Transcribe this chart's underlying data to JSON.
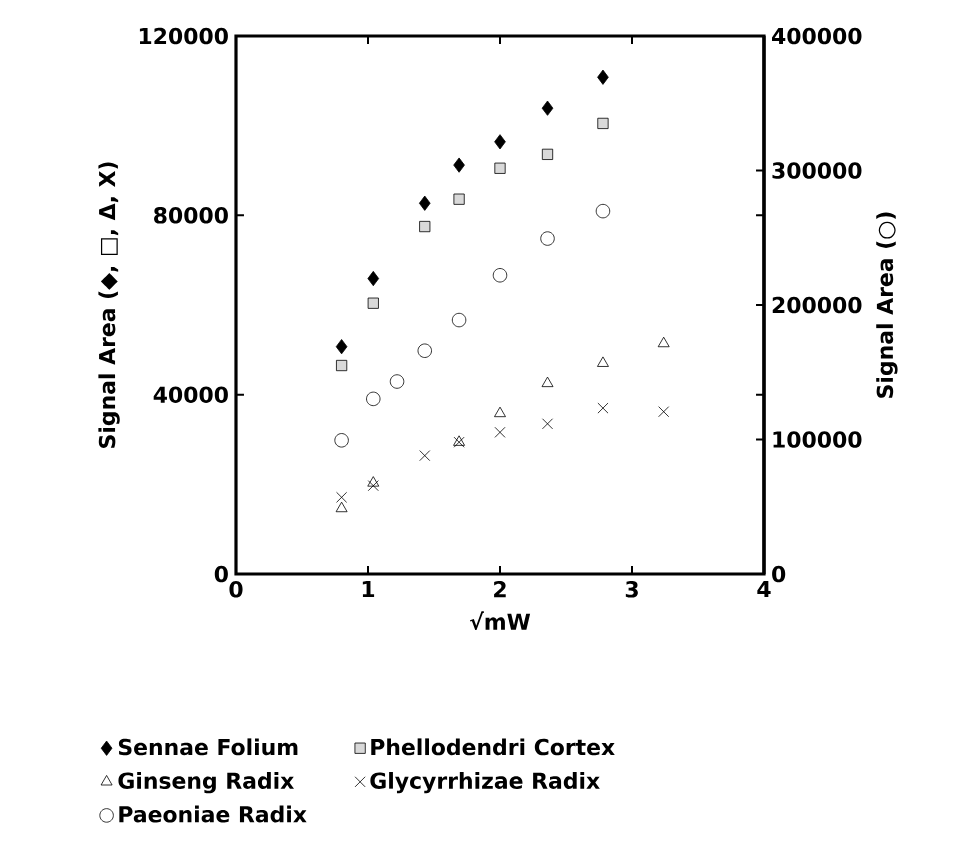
{
  "chart_data": {
    "type": "scatter",
    "xlabel": "√mW",
    "ylabel": "Signal Area (◆, □, Δ, X)",
    "y2label": "Signal Area (○)",
    "xlim": [
      0,
      4
    ],
    "xticks": [
      0,
      1,
      2,
      3,
      4
    ],
    "ylim": [
      0,
      120000
    ],
    "yticks": [
      0,
      40000,
      80000,
      120000
    ],
    "y2lim": [
      0,
      400000
    ],
    "y2ticks": [
      0,
      100000,
      200000,
      300000,
      400000
    ],
    "legend": "bottom",
    "grid": false,
    "series": [
      {
        "name": "Sennae Folium",
        "color": "#000000",
        "marker": "diamond",
        "x": [
          0.8,
          1.04,
          1.43,
          1.69,
          2.0,
          2.36,
          2.78
        ],
        "values": [
          50700,
          65900,
          82700,
          91200,
          96400,
          103900,
          110800
        ]
      },
      {
        "name": "Phellodendri Cortex",
        "color": "#000000",
        "marker": "square",
        "x": [
          0.8,
          1.04,
          1.43,
          1.69,
          2.0,
          2.36,
          2.78
        ],
        "values": [
          46500,
          60400,
          77500,
          83600,
          90500,
          93600,
          100500
        ]
      },
      {
        "name": "Ginseng Radix",
        "color": "#000000",
        "marker": "triangle",
        "x": [
          0.8,
          1.04,
          1.69,
          2.0,
          2.36,
          2.78,
          3.24
        ],
        "values": [
          14600,
          20300,
          29400,
          35800,
          42500,
          47000,
          51400
        ]
      },
      {
        "name": "Glycyrrhizae Radix",
        "color": "#000000",
        "marker": "cross",
        "x": [
          0.8,
          1.04,
          1.43,
          1.69,
          2.0,
          2.36,
          2.78,
          3.24
        ],
        "values": [
          17100,
          19700,
          26400,
          29400,
          31600,
          33500,
          37000,
          36200
        ]
      },
      {
        "name": "Paeoniae Radix",
        "color": "#000000",
        "marker": "circle",
        "axis": "y2",
        "x": [
          0.8,
          1.04,
          1.22,
          1.43,
          1.69,
          2.0,
          2.36,
          2.78
        ],
        "values": [
          99400,
          130200,
          143100,
          166000,
          188800,
          222100,
          249400,
          269800
        ]
      }
    ]
  }
}
